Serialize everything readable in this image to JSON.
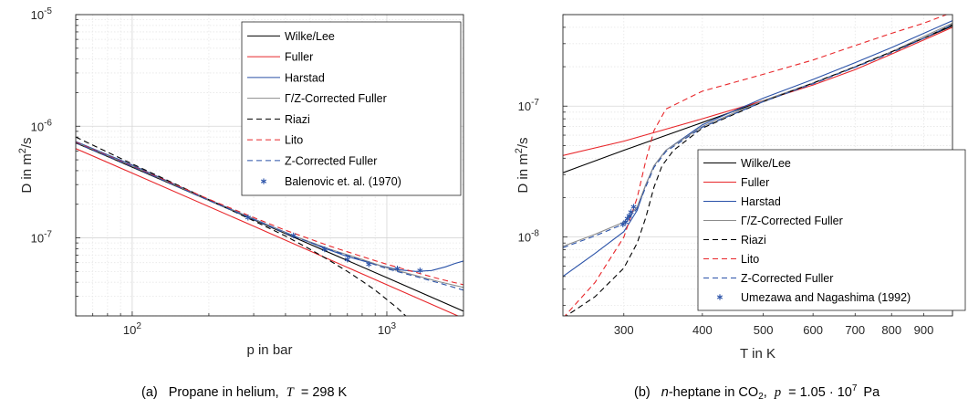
{
  "captions": {
    "a": {
      "label": "(a)",
      "text": "Propane in helium,",
      "var": "T",
      "rest": "= 298 K"
    },
    "b": {
      "label": "(b)",
      "text_prefix": "n",
      "text": "-heptane in CO",
      "sub": "2",
      "comma": ",",
      "var": "p",
      "rest": "= 1.05 · 10",
      "exp": "7",
      "unit": "Pa"
    }
  },
  "chart_data": [
    {
      "type": "line",
      "id": "a",
      "xlabel": "p in bar",
      "ylabel": "D in m²/s",
      "ylabel_parts": {
        "pre": "D in m",
        "sup": "2",
        "post": "/s"
      },
      "xscale": "log",
      "yscale": "log",
      "xlim": [
        60,
        2000
      ],
      "ylim": [
        2e-08,
        1e-05
      ],
      "grid": true,
      "legend_position": "top-right",
      "x_ticks": [
        {
          "v": 100,
          "base": "10",
          "exp": "2"
        },
        {
          "v": 1000,
          "base": "10",
          "exp": "3"
        }
      ],
      "y_ticks": [
        {
          "v": 1e-07,
          "base": "10",
          "exp": "-7"
        },
        {
          "v": 1e-06,
          "base": "10",
          "exp": "-6"
        },
        {
          "v": 1e-05,
          "base": "10",
          "exp": "-5"
        }
      ],
      "series": [
        {
          "name": "Wilke/Lee",
          "color": "#000000",
          "dash": "solid",
          "x": [
            60,
            100,
            300,
            1000,
            2000
          ],
          "y": [
            7.1e-07,
            4.3e-07,
            1.45e-07,
            4.4e-08,
            2.2e-08
          ]
        },
        {
          "name": "Fuller",
          "color": "#e8262a",
          "dash": "solid",
          "x": [
            60,
            100,
            300,
            1000,
            2000
          ],
          "y": [
            6.3e-07,
            3.8e-07,
            1.27e-07,
            3.8e-08,
            1.9e-08
          ]
        },
        {
          "name": "Harstad",
          "color": "#2a52a8",
          "dash": "solid",
          "x": [
            60,
            100,
            200,
            300,
            400,
            550,
            700,
            900,
            1100,
            1300,
            1500,
            1700,
            1850,
            2000
          ],
          "y": [
            7.3e-07,
            4.5e-07,
            2.2e-07,
            1.48e-07,
            1.12e-07,
            8.3e-08,
            6.8e-08,
            5.8e-08,
            5.2e-08,
            5e-08,
            5.1e-08,
            5.5e-08,
            5.9e-08,
            6.2e-08
          ]
        },
        {
          "name": "Γ/Z-Corrected Fuller",
          "color": "#8c8c8c",
          "dash": "solid",
          "x": [
            60,
            100,
            200,
            300,
            400,
            600,
            800,
            1000,
            1300,
            1600,
            2000
          ],
          "y": [
            7.2e-07,
            4.4e-07,
            2.18e-07,
            1.47e-07,
            1.11e-07,
            7.9e-08,
            6.4e-08,
            5.4e-08,
            4.6e-08,
            4.05e-08,
            3.6e-08
          ]
        },
        {
          "name": "Riazi",
          "color": "#000000",
          "dash": "dashed",
          "x": [
            60,
            100,
            200,
            300,
            400,
            500,
            600,
            700,
            800,
            900,
            1000,
            1100,
            1200
          ],
          "y": [
            8e-07,
            4.6e-07,
            2.2e-07,
            1.42e-07,
            1.04e-07,
            7.9e-08,
            6.2e-08,
            5e-08,
            4.1e-08,
            3.4e-08,
            2.8e-08,
            2.35e-08,
            1.95e-08
          ]
        },
        {
          "name": "Lito",
          "color": "#e8262a",
          "dash": "dashed",
          "x": [
            60,
            100,
            200,
            300,
            400,
            600,
            800,
            1000,
            1300,
            1600,
            2000
          ],
          "y": [
            7.2e-07,
            4.4e-07,
            2.22e-07,
            1.52e-07,
            1.17e-07,
            8.4e-08,
            6.8e-08,
            5.8e-08,
            4.9e-08,
            4.3e-08,
            3.8e-08
          ]
        },
        {
          "name": "Z-Corrected Fuller",
          "color": "#2a52a8",
          "dash": "dashed",
          "x": [
            60,
            100,
            200,
            300,
            400,
            600,
            800,
            1000,
            1300,
            1600,
            2000
          ],
          "y": [
            7.1e-07,
            4.35e-07,
            2.16e-07,
            1.46e-07,
            1.1e-07,
            7.8e-08,
            6.3e-08,
            5.3e-08,
            4.5e-08,
            3.95e-08,
            3.4e-08
          ]
        },
        {
          "name": "Balenovic et. al. (1970)",
          "color": "#2a52a8",
          "marker": "asterisk",
          "x": [
            285,
            430,
            570,
            700,
            850,
            1100,
            1350
          ],
          "y": [
            1.52e-07,
            1.05e-07,
            7.9e-08,
            6.4e-08,
            5.8e-08,
            5.3e-08,
            5.1e-08
          ]
        }
      ]
    },
    {
      "type": "line",
      "id": "b",
      "xlabel": "T in K",
      "ylabel": "D in m²/s",
      "ylabel_parts": {
        "pre": "D in m",
        "sup": "2",
        "post": "/s"
      },
      "xscale": "log",
      "yscale": "log",
      "xlim": [
        240,
        1000
      ],
      "ylim": [
        2.5e-09,
        5e-07
      ],
      "grid": true,
      "legend_position": "bottom-right",
      "x_ticks": [
        {
          "v": 300,
          "label": "300"
        },
        {
          "v": 400,
          "label": "400"
        },
        {
          "v": 500,
          "label": "500"
        },
        {
          "v": 600,
          "label": "600"
        },
        {
          "v": 700,
          "label": "700"
        },
        {
          "v": 800,
          "label": "800"
        },
        {
          "v": 900,
          "label": "900"
        }
      ],
      "y_ticks": [
        {
          "v": 1e-08,
          "base": "10",
          "exp": "-8"
        },
        {
          "v": 1e-07,
          "base": "10",
          "exp": "-7"
        }
      ],
      "series": [
        {
          "name": "Wilke/Lee",
          "color": "#000000",
          "dash": "solid",
          "x": [
            240,
            300,
            400,
            500,
            600,
            700,
            800,
            900,
            1000
          ],
          "y": [
            3.1e-08,
            4.6e-08,
            7.5e-08,
            1.1e-07,
            1.5e-07,
            2e-07,
            2.6e-07,
            3.3e-07,
            4.1e-07
          ]
        },
        {
          "name": "Fuller",
          "color": "#e8262a",
          "dash": "solid",
          "x": [
            240,
            300,
            400,
            500,
            600,
            700,
            800,
            900,
            1000
          ],
          "y": [
            4.2e-08,
            5.4e-08,
            8e-08,
            1.1e-07,
            1.45e-07,
            1.9e-07,
            2.5e-07,
            3.2e-07,
            4e-07
          ]
        },
        {
          "name": "Harstad",
          "color": "#2a52a8",
          "dash": "solid",
          "x": [
            240,
            270,
            300,
            315,
            325,
            335,
            350,
            400,
            500,
            600,
            700,
            800,
            900,
            1000
          ],
          "y": [
            5e-09,
            7.5e-09,
            1.1e-08,
            1.6e-08,
            2.5e-08,
            3.5e-08,
            4.6e-08,
            7.2e-08,
            1.15e-07,
            1.6e-07,
            2.15e-07,
            2.8e-07,
            3.6e-07,
            4.5e-07
          ]
        },
        {
          "name": "Γ/Z-Corrected Fuller",
          "color": "#8c8c8c",
          "dash": "solid",
          "x": [
            240,
            270,
            300,
            315,
            325,
            335,
            350,
            400,
            500,
            600,
            700,
            800,
            900,
            1000
          ],
          "y": [
            8.5e-09,
            1.05e-08,
            1.3e-08,
            1.7e-08,
            2.5e-08,
            3.5e-08,
            4.6e-08,
            7e-08,
            1.1e-07,
            1.5e-07,
            2e-07,
            2.6e-07,
            3.4e-07,
            4.3e-07
          ]
        },
        {
          "name": "Riazi",
          "color": "#000000",
          "dash": "dashed",
          "x": [
            240,
            270,
            300,
            315,
            325,
            335,
            345,
            360,
            400,
            500,
            600,
            700,
            800,
            900,
            1000
          ],
          "y": [
            2.4e-09,
            3.5e-09,
            5.8e-09,
            9e-09,
            1.4e-08,
            2.4e-08,
            3.5e-08,
            4.6e-08,
            6.8e-08,
            1.08e-07,
            1.5e-07,
            2e-07,
            2.6e-07,
            3.3e-07,
            4.2e-07
          ]
        },
        {
          "name": "Lito",
          "color": "#e8262a",
          "dash": "dashed",
          "x": [
            240,
            270,
            300,
            315,
            325,
            335,
            350,
            400,
            500,
            600,
            700,
            800,
            900,
            1000
          ],
          "y": [
            2.4e-09,
            4.5e-09,
            1e-08,
            2e-08,
            3.8e-08,
            6.5e-08,
            9.5e-08,
            1.3e-07,
            1.75e-07,
            2.25e-07,
            2.9e-07,
            3.6e-07,
            4.3e-07,
            5.2e-07
          ]
        },
        {
          "name": "Z-Corrected Fuller",
          "color": "#2a52a8",
          "dash": "dashed",
          "x": [
            240,
            270,
            300,
            315,
            325,
            335,
            350,
            400,
            500,
            600,
            700,
            800,
            900,
            1000
          ],
          "y": [
            8.3e-09,
            1.02e-08,
            1.26e-08,
            1.65e-08,
            2.4e-08,
            3.4e-08,
            4.5e-08,
            6.9e-08,
            1.08e-07,
            1.48e-07,
            1.98e-07,
            2.55e-07,
            3.3e-07,
            4.2e-07
          ]
        },
        {
          "name": "Umezawa and Nagashima (1992)",
          "color": "#2a52a8",
          "marker": "asterisk",
          "x": [
            299,
            302,
            304,
            306,
            308,
            311
          ],
          "y": [
            1.25e-08,
            1.3e-08,
            1.38e-08,
            1.45e-08,
            1.55e-08,
            1.7e-08
          ]
        }
      ]
    }
  ]
}
